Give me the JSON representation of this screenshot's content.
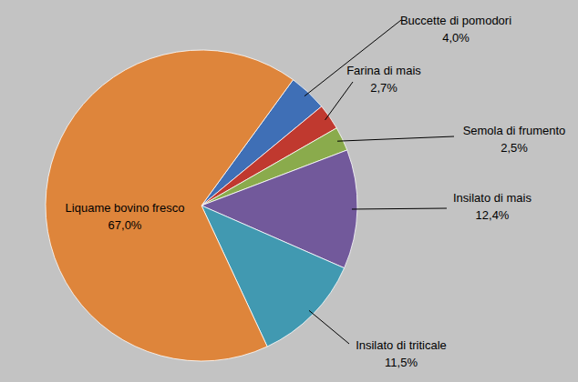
{
  "chart_data": {
    "type": "pie",
    "categories": [
      "Buccette di pomodori",
      "Farina di mais",
      "Semola di frumento",
      "Insilato di mais",
      "Insilato di triticale",
      "Liquame bovino fresco"
    ],
    "values": [
      4.0,
      2.7,
      2.5,
      12.4,
      11.5,
      67.0
    ],
    "value_labels": [
      "4,0%",
      "2,7%",
      "2,5%",
      "12,4%",
      "11,5%",
      "67,0%"
    ],
    "colors": [
      "#3f6fb6",
      "#c0392f",
      "#8aab4c",
      "#72599b",
      "#4199b1",
      "#de853b"
    ],
    "data_labels": true,
    "legend": "none"
  }
}
